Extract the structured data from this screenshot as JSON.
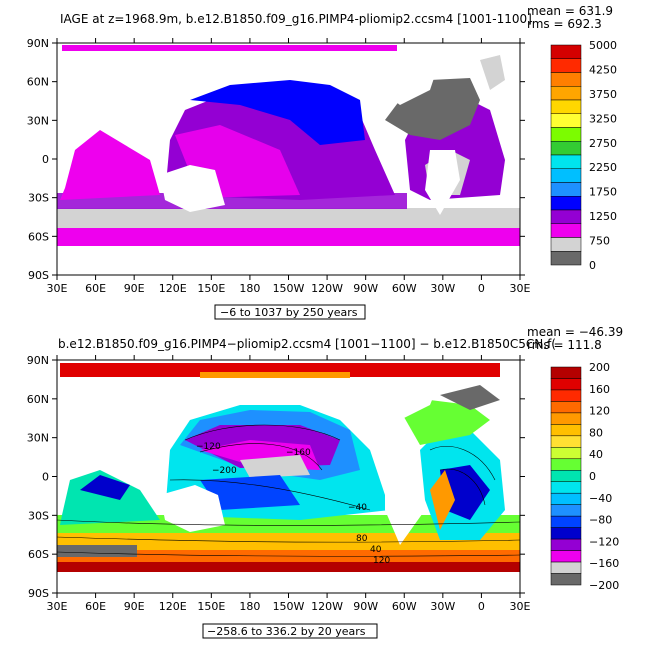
{
  "chart_data": [
    {
      "type": "heatmap",
      "title": "IAGE at z=1968.9m, b.e12.B1850.f09_g16.PIMP4-pliomip2.ccsm4 [1001-1100]",
      "stat_mean": "mean = 631.9",
      "stat_rms": "rms = 692.3",
      "x_ticks": [
        "30E",
        "60E",
        "90E",
        "120E",
        "150E",
        "180",
        "150W",
        "120W",
        "90W",
        "60W",
        "30W",
        "0",
        "30E"
      ],
      "y_ticks": [
        "90N",
        "60N",
        "30N",
        "0",
        "30S",
        "60S",
        "90S"
      ],
      "info": "−6 to 1037 by 250 years",
      "colorbar_labels": [
        "5000",
        "4250",
        "3750",
        "3250",
        "2750",
        "2250",
        "1750",
        "1250",
        "750",
        "0"
      ],
      "colors": [
        "#d40000",
        "#ff2a00",
        "#ff7f00",
        "#ffa500",
        "#ffd700",
        "#ffff33",
        "#7cfc00",
        "#33cc33",
        "#00e5ee",
        "#00bfff",
        "#1e90ff",
        "#0000ff",
        "#9400d3",
        "#ee00ee",
        "#d3d3d3",
        "#696969"
      ]
    },
    {
      "type": "heatmap",
      "title": "b.e12.B1850.f09_g16.PIMP4−pliomip2.ccsm4 [1001−1100] − b.e12.B1850C5CN.f(",
      "stat_mean": "mean = −46.39",
      "stat_rms": "rms = 111.8",
      "x_ticks": [
        "30E",
        "60E",
        "90E",
        "120E",
        "150E",
        "180",
        "150W",
        "120W",
        "90W",
        "60W",
        "30W",
        "0",
        "30E"
      ],
      "y_ticks": [
        "90N",
        "60N",
        "30N",
        "0",
        "30S",
        "60S",
        "90S"
      ],
      "info": "−258.6 to 336.2 by 20 years",
      "colorbar_labels": [
        "200",
        "160",
        "120",
        "80",
        "40",
        "0",
        "−40",
        "−80",
        "−120",
        "−160",
        "−200"
      ],
      "contour_labels": [
        "−120",
        "−160",
        "−200",
        "−40",
        "40",
        "80",
        "120"
      ],
      "colors": [
        "#b40000",
        "#e00000",
        "#ff2a00",
        "#ff6a00",
        "#ff9900",
        "#ffbf00",
        "#ffe033",
        "#ccff33",
        "#66ff33",
        "#00e5b0",
        "#00e5ee",
        "#00bfff",
        "#1e90ff",
        "#0044ff",
        "#0000cc",
        "#9400d3",
        "#ee00ee",
        "#d3d3d3",
        "#696969"
      ]
    }
  ]
}
